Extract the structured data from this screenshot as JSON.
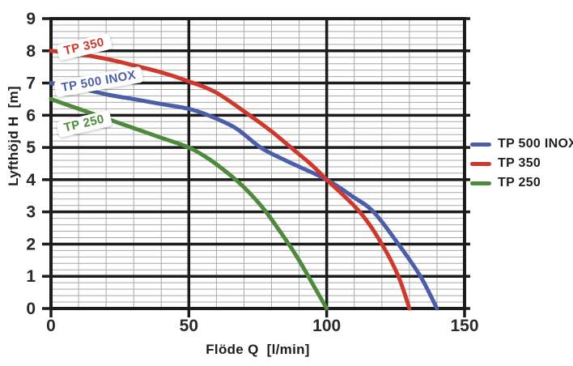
{
  "chart_data": {
    "type": "line",
    "title": "",
    "xlabel": "Flöde Q  [l/min]",
    "ylabel": "Lyfthöjd H  [m]",
    "xlim": [
      0,
      150
    ],
    "ylim": [
      0,
      9
    ],
    "x_major_ticks": [
      0,
      50,
      100,
      150
    ],
    "y_major_ticks": [
      0,
      1,
      2,
      3,
      4,
      5,
      6,
      7,
      8,
      9
    ],
    "x_minor_step": 10,
    "y_minor_step": 0.2,
    "grid": "major and minor, full frame",
    "legend_position": "right",
    "series": [
      {
        "name": "TP 500 INOX",
        "color": "#4b5ea9",
        "points": [
          [
            0,
            7.0
          ],
          [
            10,
            6.85
          ],
          [
            20,
            6.65
          ],
          [
            30,
            6.5
          ],
          [
            40,
            6.35
          ],
          [
            50,
            6.2
          ],
          [
            57,
            6.0
          ],
          [
            67,
            5.6
          ],
          [
            76,
            5.0
          ],
          [
            85,
            4.6
          ],
          [
            100,
            4.0
          ],
          [
            109,
            3.5
          ],
          [
            117,
            3.0
          ],
          [
            126,
            2.0
          ],
          [
            134,
            1.0
          ],
          [
            140,
            0.0
          ]
        ]
      },
      {
        "name": "TP 350",
        "color": "#cf382c",
        "points": [
          [
            0,
            8.0
          ],
          [
            10,
            7.9
          ],
          [
            20,
            7.75
          ],
          [
            30,
            7.55
          ],
          [
            40,
            7.33
          ],
          [
            50,
            7.05
          ],
          [
            60,
            6.7
          ],
          [
            72,
            6.0
          ],
          [
            80,
            5.5
          ],
          [
            87,
            5.0
          ],
          [
            94,
            4.5
          ],
          [
            100,
            4.0
          ],
          [
            112,
            3.0
          ],
          [
            120,
            2.0
          ],
          [
            126,
            1.0
          ],
          [
            130,
            0.0
          ]
        ]
      },
      {
        "name": "TP 250",
        "color": "#4d8a3c",
        "points": [
          [
            0,
            6.5
          ],
          [
            10,
            6.2
          ],
          [
            20,
            5.9
          ],
          [
            30,
            5.6
          ],
          [
            40,
            5.3
          ],
          [
            50,
            5.0
          ],
          [
            58,
            4.6
          ],
          [
            67,
            4.0
          ],
          [
            73,
            3.5
          ],
          [
            78,
            3.0
          ],
          [
            83,
            2.4
          ],
          [
            87,
            1.9
          ],
          [
            91,
            1.35
          ],
          [
            95,
            0.75
          ],
          [
            100,
            0.0
          ]
        ]
      }
    ],
    "curve_labels": [
      {
        "text": "TP 350",
        "color": "#cf382c",
        "x": 104,
        "y": 58,
        "angle": -13
      },
      {
        "text": "TP 500 INOX",
        "color": "#4b5ea9",
        "x": 122,
        "y": 101,
        "angle": -10
      },
      {
        "text": "TP 250",
        "color": "#4d8a3c",
        "x": 104,
        "y": 153,
        "angle": -13
      }
    ]
  },
  "axes": {
    "x_title": "Flöde Q  [l/min]",
    "y_title": "Lyfthöjd H  [m]"
  },
  "legend": {
    "items": [
      {
        "label": "TP 500 INOX",
        "color": "#4b5ea9"
      },
      {
        "label": "TP 350",
        "color": "#cf382c"
      },
      {
        "label": "TP 250",
        "color": "#4d8a3c"
      }
    ]
  },
  "colors": {
    "background": "#ffffff",
    "frame_and_major_grid": "#1c1c1c",
    "minor_grid": "#a8a8a8",
    "tick_text": "#2a2a2a"
  }
}
